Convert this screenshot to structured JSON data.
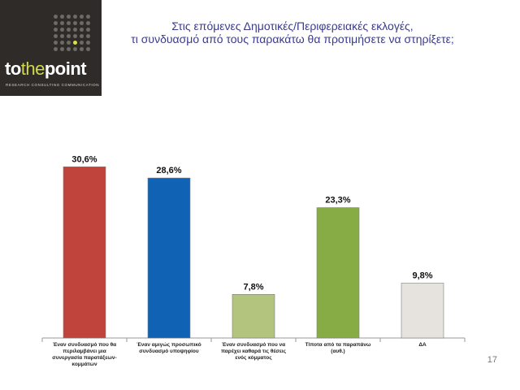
{
  "header": {
    "title_line1": "Στις επόμενες Δημοτικές/Περιφερειακές εκλογές,",
    "title_line2": "τι συνδυασμό από τους παρακάτω θα προτιμήσετε να στηρίξετε;"
  },
  "logo": {
    "brand_pre": "to",
    "brand_mid": "the",
    "brand_post": "point",
    "tagline": "RESEARCH  CONSULTING  COMMUNICATION"
  },
  "page_number": "17",
  "chart_data": {
    "type": "bar",
    "categories": [
      "Έναν συνδυασμό που θα περιλαμβάνει μια συνεργασία παρατάξεων-κομμάτων",
      "Έναν αμιγώς προσωπικό συνδυασμό υποψηφίου",
      "Έναν συνδυασμό που να παρέχει καθαρά τις θέσεις ενός κόμματος",
      "Τίποτα από τα παραπάνω (αυθ.)",
      "ΔΑ"
    ],
    "values": [
      30.6,
      28.6,
      7.8,
      23.3,
      9.8
    ],
    "value_labels": [
      "30,6%",
      "28,6%",
      "7,8%",
      "23,3%",
      "9,8%"
    ],
    "colors": [
      "#c0433c",
      "#0f62b4",
      "#b2c47d",
      "#88ac45",
      "#e6e3df"
    ],
    "ylim": [
      0,
      35
    ]
  }
}
